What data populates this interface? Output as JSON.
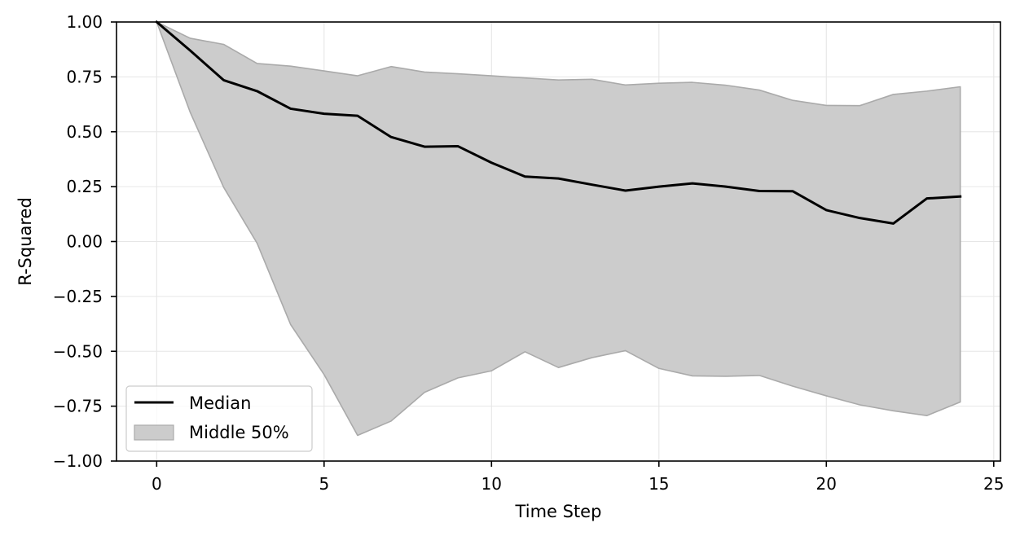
{
  "chart_data": {
    "type": "line",
    "title": "",
    "xlabel": "Time Step",
    "ylabel": "R-Squared",
    "xlim": [
      -1.2,
      25.2
    ],
    "ylim": [
      -1.0,
      1.0
    ],
    "xticks": [
      0,
      5,
      10,
      15,
      20,
      25
    ],
    "xtick_labels": [
      "0",
      "5",
      "10",
      "15",
      "20",
      "25"
    ],
    "yticks": [
      -1.0,
      -0.75,
      -0.5,
      -0.25,
      0.0,
      0.25,
      0.5,
      0.75,
      1.0
    ],
    "ytick_labels": [
      "−1.00",
      "−0.75",
      "−0.50",
      "−0.25",
      "0.00",
      "0.25",
      "0.50",
      "0.75",
      "1.00"
    ],
    "grid": true,
    "legend_position": "lower-left",
    "x": [
      0,
      1,
      2,
      3,
      4,
      5,
      6,
      7,
      8,
      9,
      10,
      11,
      12,
      13,
      14,
      15,
      16,
      17,
      18,
      19,
      20,
      21,
      22,
      23,
      24
    ],
    "series": [
      {
        "name": "Median",
        "kind": "line",
        "color": "#000000",
        "values": [
          1.0,
          0.87,
          0.735,
          0.685,
          0.605,
          0.582,
          0.573,
          0.476,
          0.432,
          0.434,
          0.359,
          0.296,
          0.287,
          0.259,
          0.232,
          0.25,
          0.265,
          0.25,
          0.23,
          0.229,
          0.143,
          0.107,
          0.082,
          0.196,
          0.205
        ]
      },
      {
        "name": "Middle 50%",
        "kind": "band",
        "color": "#cccccc",
        "edge_color": "#aaaaaa",
        "upper": [
          1.0,
          0.926,
          0.898,
          0.811,
          0.799,
          0.777,
          0.755,
          0.797,
          0.772,
          0.764,
          0.755,
          0.745,
          0.736,
          0.739,
          0.713,
          0.721,
          0.725,
          0.712,
          0.69,
          0.643,
          0.62,
          0.619,
          0.67,
          0.685,
          0.705
        ],
        "lower": [
          1.0,
          0.589,
          0.247,
          -0.008,
          -0.378,
          -0.606,
          -0.883,
          -0.818,
          -0.687,
          -0.621,
          -0.589,
          -0.502,
          -0.574,
          -0.529,
          -0.497,
          -0.578,
          -0.612,
          -0.614,
          -0.61,
          -0.659,
          -0.703,
          -0.744,
          -0.771,
          -0.793,
          -0.731
        ]
      }
    ]
  }
}
